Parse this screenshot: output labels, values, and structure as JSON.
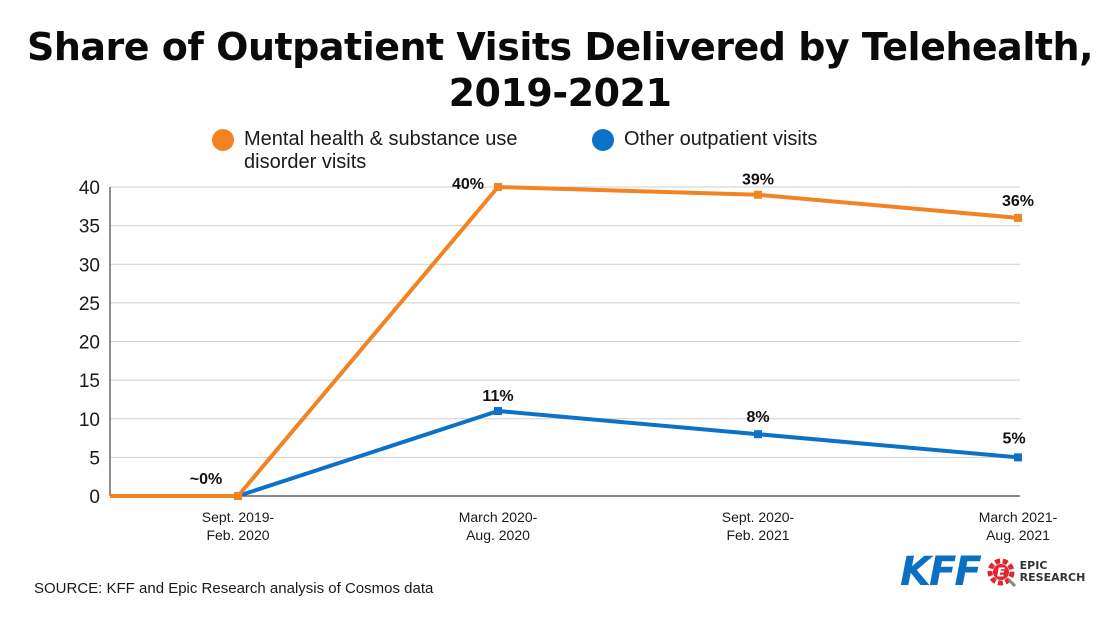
{
  "chart_data": {
    "type": "line",
    "title_line1": "Share of Outpatient Visits Delivered by Telehealth,",
    "title_line2": "2019-2021",
    "categories": [
      [
        "Sept. 2019-",
        "Feb. 2020"
      ],
      [
        "March 2020-",
        "Aug. 2020"
      ],
      [
        "Sept. 2020-",
        "Feb. 2021"
      ],
      [
        "March 2021-",
        "Aug. 2021"
      ]
    ],
    "ylim": [
      0,
      40
    ],
    "yticks": [
      "0",
      "5",
      "10",
      "15",
      "20",
      "25",
      "30",
      "35",
      "40"
    ],
    "grid": true,
    "legend_position": "top",
    "series": [
      {
        "name_line1": "Mental health & substance use",
        "name_line2": "disorder visits",
        "color": "#f28322",
        "values": [
          0,
          40,
          39,
          36
        ],
        "labels": [
          "",
          "40%",
          "39%",
          "36%"
        ]
      },
      {
        "name_line1": "Other outpatient visits",
        "color": "#0b72c7",
        "values": [
          0,
          11,
          8,
          5
        ],
        "labels": [
          "",
          "11%",
          "8%",
          "5%"
        ]
      }
    ],
    "shared_label": "~0%"
  },
  "footer": {
    "source": "SOURCE:  KFF and Epic Research analysis of Cosmos data"
  },
  "logos": {
    "kff": "KFF",
    "epic_line1": "EPIC",
    "epic_line2": "RESEARCH",
    "epic_mark_letter": "E",
    "kff_color": "#0b6fc2",
    "epic_color": "#e0262f"
  }
}
